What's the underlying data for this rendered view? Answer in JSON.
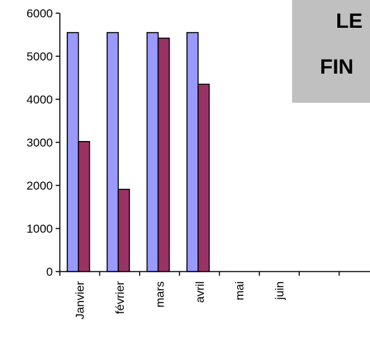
{
  "chart_data": {
    "type": "bar",
    "categories": [
      "Janvier",
      "février",
      "mars",
      "avril",
      "mai",
      "juin",
      "",
      ""
    ],
    "series": [
      {
        "values": [
          5550,
          5550,
          5550,
          5550,
          null,
          null,
          null,
          null
        ],
        "color": "#9999ff"
      },
      {
        "values": [
          3020,
          1910,
          5420,
          4350,
          null,
          null,
          null,
          null
        ],
        "color": "#993366"
      }
    ],
    "ylim": [
      0,
      6000
    ],
    "yticks": [
      "0",
      "1000",
      "2000",
      "3000",
      "4000",
      "5000",
      "6000"
    ],
    "title_lines": [
      "LE",
      "FIN"
    ],
    "grid": false,
    "legend": "none"
  }
}
